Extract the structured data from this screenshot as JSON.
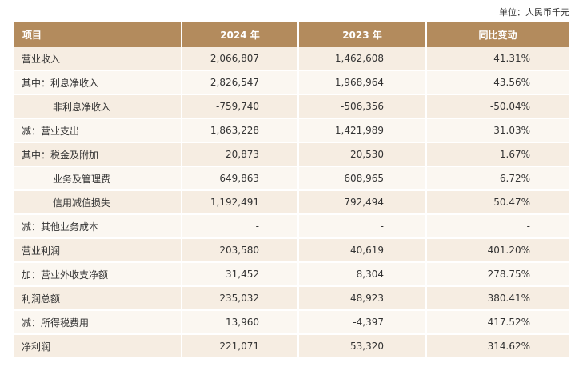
{
  "unit_note": "单位：人民币千元",
  "table": {
    "headers": [
      "项目",
      "2024 年",
      "2023 年",
      "同比变动"
    ],
    "rows": [
      {
        "label": "营业收入",
        "indent": false,
        "v2024": "2,066,807",
        "v2023": "1,462,608",
        "change": "41.31%"
      },
      {
        "label": "其中：利息净收入",
        "indent": false,
        "v2024": "2,826,547",
        "v2023": "1,968,964",
        "change": "43.56%"
      },
      {
        "label": "非利息净收入",
        "indent": true,
        "v2024": "-759,740",
        "v2023": "-506,356",
        "change": "-50.04%"
      },
      {
        "label": "减：营业支出",
        "indent": false,
        "v2024": "1,863,228",
        "v2023": "1,421,989",
        "change": "31.03%"
      },
      {
        "label": "其中：税金及附加",
        "indent": false,
        "v2024": "20,873",
        "v2023": "20,530",
        "change": "1.67%"
      },
      {
        "label": "业务及管理费",
        "indent": true,
        "v2024": "649,863",
        "v2023": "608,965",
        "change": "6.72%"
      },
      {
        "label": "信用减值损失",
        "indent": true,
        "v2024": "1,192,491",
        "v2023": "792,494",
        "change": "50.47%"
      },
      {
        "label": "减：其他业务成本",
        "indent": false,
        "v2024": "-",
        "v2023": "-",
        "change": "-"
      },
      {
        "label": "营业利润",
        "indent": false,
        "v2024": "203,580",
        "v2023": "40,619",
        "change": "401.20%"
      },
      {
        "label": "加：营业外收支净额",
        "indent": false,
        "v2024": "31,452",
        "v2023": "8,304",
        "change": "278.75%"
      },
      {
        "label": "利润总额",
        "indent": false,
        "v2024": "235,032",
        "v2023": "48,923",
        "change": "380.41%"
      },
      {
        "label": "减：所得税费用",
        "indent": false,
        "v2024": "13,960",
        "v2023": "-4,397",
        "change": "417.52%"
      },
      {
        "label": "净利润",
        "indent": false,
        "v2024": "221,071",
        "v2023": "53,320",
        "change": "314.62%"
      }
    ]
  }
}
